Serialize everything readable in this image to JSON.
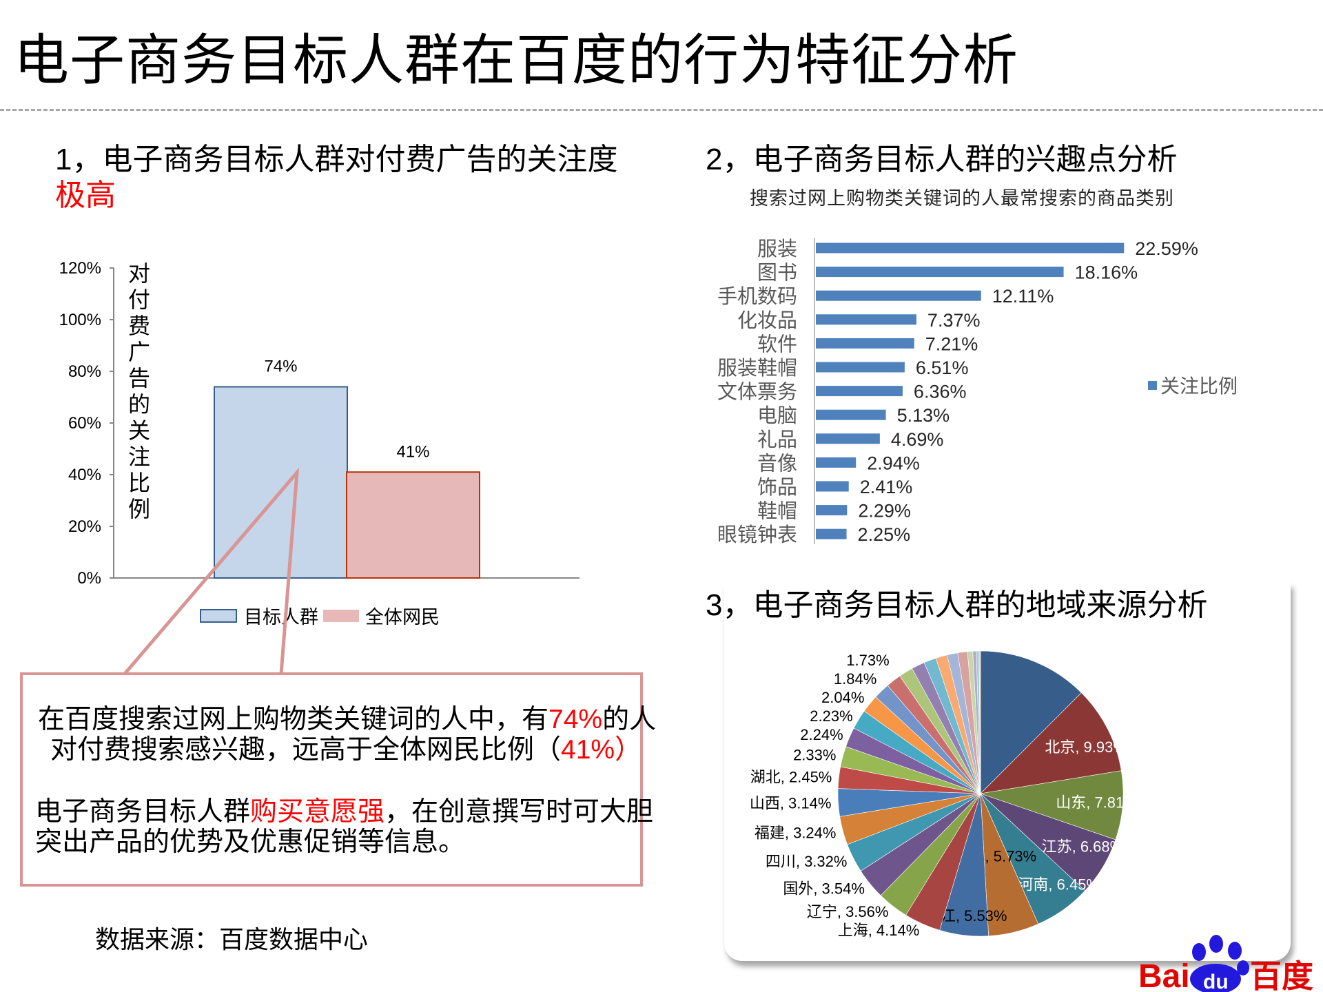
{
  "title": "电子商务目标人群在百度的行为特征分析",
  "section1": {
    "title": "1，电子商务目标人群对付费广告的关注度",
    "highlight": "极高"
  },
  "section2": {
    "title": "2，电子商务目标人群的兴趣点分析",
    "subtitle": "搜索过网上购物类关键词的人最常搜索的商品类别"
  },
  "section3": {
    "title": "3，电子商务目标人群的地域来源分析"
  },
  "callout": {
    "line1_a": "在百度搜索过网上购物类关键词的人中，有",
    "line1_red": "74%",
    "line1_b": "的人",
    "line2_a": "对付费搜索感兴趣，远高于全体网民比例（",
    "line2_red": "41%",
    "line2_b": "）",
    "line3_a": "电子商务目标人群",
    "line3_red": "购买意愿强",
    "line3_b": "，在创意撰写时可大胆",
    "line4": "突出产品的优势及优惠促销等信息。"
  },
  "source_note": "数据来源：百度数据中心",
  "logo": {
    "text_left": "Bai",
    "text_paw": "du",
    "text_right": "百度"
  },
  "chart_data": [
    {
      "type": "bar",
      "categories": [
        ""
      ],
      "series": [
        {
          "name": "目标人群",
          "values": [
            74
          ],
          "labels": [
            "74%"
          ],
          "color": "#c5d5ea",
          "stroke": "#385d8a"
        },
        {
          "name": "全体网民",
          "values": [
            41
          ],
          "labels": [
            "41%"
          ],
          "color": "#e6b9b8",
          "stroke": "#b7310a"
        }
      ],
      "ylabel": "对付费广告的关注比例",
      "ylim": [
        0,
        120
      ],
      "yticks": [
        "0%",
        "20%",
        "40%",
        "60%",
        "80%",
        "100%",
        "120%"
      ],
      "legend": "bottom",
      "grid": false
    },
    {
      "type": "bar",
      "orientation": "horizontal",
      "categories": [
        "服装",
        "图书",
        "手机数码",
        "化妆品",
        "软件",
        "服装鞋帽",
        "文体票务",
        "电脑",
        "礼品",
        "音像",
        "饰品",
        "鞋帽",
        "眼镜钟表"
      ],
      "series": [
        {
          "name": "关注比例",
          "values": [
            22.59,
            18.16,
            12.11,
            7.37,
            7.21,
            6.51,
            6.36,
            5.13,
            4.69,
            2.94,
            2.41,
            2.29,
            2.25
          ],
          "labels": [
            "22.59%",
            "18.16%",
            "12.11%",
            "7.37%",
            "7.21%",
            "6.51%",
            "6.36%",
            "5.13%",
            "4.69%",
            "2.94%",
            "2.41%",
            "2.29%",
            "2.25%"
          ],
          "color": "#4f81bd"
        }
      ],
      "legend": "right",
      "grid": false
    },
    {
      "type": "pie",
      "start": "top",
      "direction": "clockwise",
      "slices": [
        {
          "label": "",
          "value": 12.5,
          "color": "#375d8a"
        },
        {
          "label": "北京",
          "value": 9.93,
          "text": "北京, 9.93%",
          "color": "#8b3735"
        },
        {
          "label": "山东",
          "value": 7.81,
          "text": "山东, 7.81%",
          "color": "#71893f"
        },
        {
          "label": "江苏",
          "value": 6.68,
          "text": "江苏, 6.68%",
          "color": "#5c4776"
        },
        {
          "label": "河南",
          "value": 6.45,
          "text": "河南, 6.45%",
          "color": "#357d91"
        },
        {
          "label": "河北",
          "value": 5.73,
          "text": "河北, 5.73%",
          "color": "#b66d31"
        },
        {
          "label": "浙江",
          "value": 5.53,
          "text": "浙江, 5.53%",
          "color": "#426da2"
        },
        {
          "label": "上海",
          "value": 4.14,
          "text": "上海, 4.14%",
          "color": "#a74542"
        },
        {
          "label": "辽宁",
          "value": 3.56,
          "text": "辽宁, 3.56%",
          "color": "#86a44a"
        },
        {
          "label": "国外",
          "value": 3.54,
          "text": "国外, 3.54%",
          "color": "#6e568c"
        },
        {
          "label": "四川",
          "value": 3.32,
          "text": "四川, 3.32%",
          "color": "#3f97b0"
        },
        {
          "label": "福建",
          "value": 3.24,
          "text": "福建, 3.24%",
          "color": "#d58137"
        },
        {
          "label": "山西",
          "value": 3.14,
          "text": "山西, 3.14%",
          "color": "#4a7ebb"
        },
        {
          "label": "湖北",
          "value": 2.45,
          "text": "湖北, 2.45%",
          "color": "#be4b48"
        },
        {
          "label": "",
          "value": 2.33,
          "text": "2.33%",
          "color": "#98b954"
        },
        {
          "label": "",
          "value": 2.24,
          "text": "2.24%",
          "color": "#7d60a0"
        },
        {
          "label": "",
          "value": 2.23,
          "text": "2.23%",
          "color": "#46aac5"
        },
        {
          "label": "",
          "value": 2.04,
          "text": "2.04%",
          "color": "#f79646"
        },
        {
          "label": "",
          "value": 1.84,
          "text": "1.84%",
          "color": "#7394c8"
        },
        {
          "label": "",
          "value": 1.73,
          "text": "1.73%",
          "color": "#c9706e"
        },
        {
          "label": "",
          "value": 1.6,
          "color": "#acc57b"
        },
        {
          "label": "",
          "value": 1.5,
          "color": "#9380b0"
        },
        {
          "label": "",
          "value": 1.4,
          "color": "#72b8ce"
        },
        {
          "label": "",
          "value": 1.3,
          "color": "#f9aa70"
        },
        {
          "label": "",
          "value": 1.2,
          "color": "#a3b5d8"
        },
        {
          "label": "",
          "value": 1.1,
          "color": "#d8a2a1"
        },
        {
          "label": "",
          "value": 0.6,
          "color": "#c6d8a9"
        },
        {
          "label": "",
          "value": 0.4,
          "color": "#b5a9c9"
        },
        {
          "label": "",
          "value": 0.3,
          "color": "#9ccfe0"
        },
        {
          "label": "",
          "value": 0.17,
          "color": "#fbc9a3"
        }
      ]
    }
  ]
}
